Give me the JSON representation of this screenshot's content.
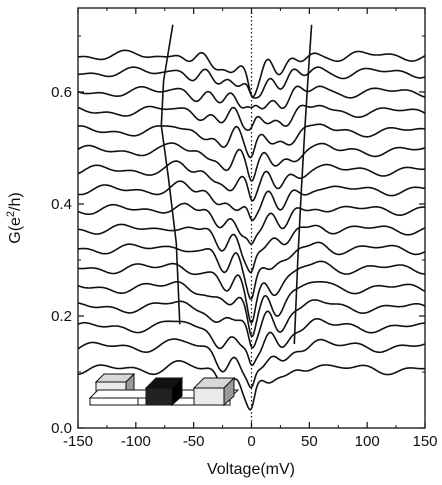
{
  "chart_data": {
    "type": "line",
    "title": "",
    "xlabel": "Voltage(mV)",
    "ylabel_base": "G(e",
    "ylabel_sup": "2",
    "ylabel_tail": "/h)",
    "xlim": [
      -150,
      150
    ],
    "ylim": [
      0.0,
      0.75
    ],
    "xticks": [
      -150,
      -100,
      -50,
      0,
      50,
      100,
      150
    ],
    "xtick_labels": [
      "-150",
      "-100",
      "-50",
      "0",
      "50",
      "100",
      "150"
    ],
    "yticks": [
      0.0,
      0.2,
      0.4,
      0.6
    ],
    "ytick_labels": [
      "0.0",
      "0.2",
      "0.4",
      "0.6"
    ],
    "grid": false,
    "zero_bias_line": true,
    "series_count": 17,
    "series_background": [
      0.105,
      0.145,
      0.18,
      0.215,
      0.25,
      0.285,
      0.32,
      0.355,
      0.39,
      0.425,
      0.46,
      0.495,
      0.53,
      0.565,
      0.6,
      0.635,
      0.665
    ],
    "series_zero_bias_min": [
      0.05,
      0.08,
      0.12,
      0.16,
      0.19,
      0.22,
      0.26,
      0.3,
      0.34,
      0.38,
      0.42,
      0.46,
      0.5,
      0.54,
      0.57,
      0.6,
      0.62
    ],
    "left_guide": {
      "x": [
        -62,
        -65,
        -72,
        -78,
        -76,
        -68
      ],
      "y": [
        0.185,
        0.33,
        0.45,
        0.54,
        0.62,
        0.72
      ]
    },
    "right_guide": {
      "x": [
        37,
        40,
        43,
        46,
        49,
        52
      ],
      "y": [
        0.15,
        0.3,
        0.42,
        0.53,
        0.63,
        0.72
      ]
    },
    "inset": "device-schematic"
  }
}
